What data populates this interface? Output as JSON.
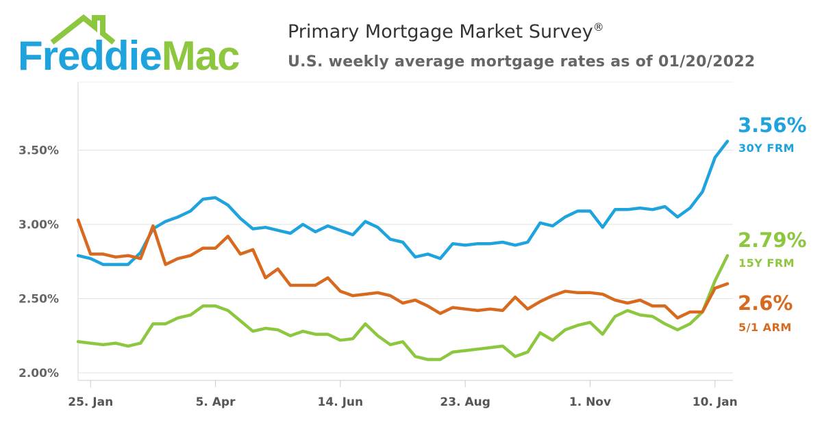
{
  "brand": {
    "name_part1": "Freddie",
    "name_part2": "Mac",
    "colors": {
      "blue": "#1fa3dd",
      "green": "#8dc63f",
      "orange": "#d86a1f"
    }
  },
  "header": {
    "title": "Primary Mortgage Market Survey",
    "title_mark": "®",
    "subtitle": "U.S. weekly average mortgage rates as of 01/20/2022"
  },
  "chart_data": {
    "type": "line",
    "y_tick_labels": [
      "2.00%",
      "2.50%",
      "3.00%",
      "3.50%"
    ],
    "y_ticks": [
      2.0,
      2.5,
      3.0,
      3.5
    ],
    "ylim": [
      2.0,
      4.0
    ],
    "x_tick_labels": [
      "25. Jan",
      "5. Apr",
      "14. Jun",
      "23. Aug",
      "1. Nov",
      "10. Jan"
    ],
    "x_tick_weeks": [
      1,
      11,
      21,
      31,
      41,
      51
    ],
    "grid": true,
    "series": [
      {
        "name": "30Y FRM",
        "color": "#1fa3dd",
        "last_value_label": "3.56%",
        "values": [
          2.79,
          2.77,
          2.73,
          2.73,
          2.73,
          2.81,
          2.97,
          3.02,
          3.05,
          3.09,
          3.17,
          3.18,
          3.13,
          3.04,
          2.97,
          2.98,
          2.96,
          2.94,
          3.0,
          2.95,
          2.99,
          2.96,
          2.93,
          3.02,
          2.98,
          2.9,
          2.88,
          2.78,
          2.8,
          2.77,
          2.87,
          2.86,
          2.87,
          2.87,
          2.88,
          2.86,
          2.88,
          3.01,
          2.99,
          3.05,
          3.09,
          3.09,
          2.98,
          3.1,
          3.1,
          3.11,
          3.1,
          3.12,
          3.05,
          3.11,
          3.22,
          3.45,
          3.56
        ]
      },
      {
        "name": "15Y FRM",
        "color": "#8dc63f",
        "last_value_label": "2.79%",
        "values": [
          2.21,
          2.2,
          2.19,
          2.2,
          2.18,
          2.2,
          2.33,
          2.33,
          2.37,
          2.39,
          2.45,
          2.45,
          2.42,
          2.35,
          2.28,
          2.3,
          2.29,
          2.25,
          2.28,
          2.26,
          2.26,
          2.22,
          2.23,
          2.33,
          2.25,
          2.19,
          2.21,
          2.11,
          2.09,
          2.09,
          2.14,
          2.15,
          2.16,
          2.17,
          2.18,
          2.11,
          2.14,
          2.27,
          2.22,
          2.29,
          2.32,
          2.34,
          2.26,
          2.38,
          2.42,
          2.39,
          2.38,
          2.33,
          2.29,
          2.33,
          2.41,
          2.62,
          2.79
        ]
      },
      {
        "name": "5/1 ARM",
        "color": "#d86a1f",
        "last_value_label": "2.6%",
        "values": [
          3.03,
          2.8,
          2.8,
          2.78,
          2.79,
          2.77,
          2.99,
          2.73,
          2.77,
          2.79,
          2.84,
          2.84,
          2.92,
          2.8,
          2.83,
          2.64,
          2.7,
          2.59,
          2.59,
          2.59,
          2.64,
          2.55,
          2.52,
          2.53,
          2.54,
          2.52,
          2.47,
          2.49,
          2.45,
          2.4,
          2.44,
          2.43,
          2.42,
          2.43,
          2.42,
          2.51,
          2.43,
          2.48,
          2.52,
          2.55,
          2.54,
          2.54,
          2.53,
          2.49,
          2.47,
          2.49,
          2.45,
          2.45,
          2.37,
          2.41,
          2.41,
          2.57,
          2.6
        ]
      }
    ]
  }
}
